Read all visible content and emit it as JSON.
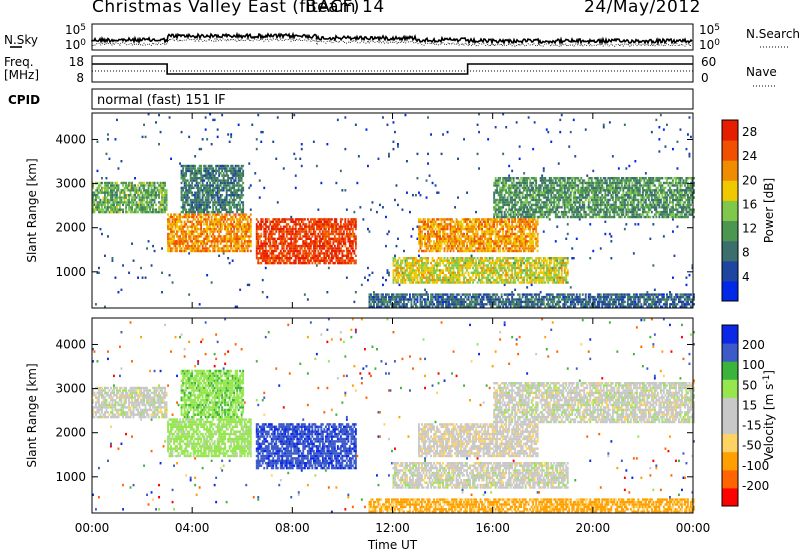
{
  "header": {
    "station": "Christmas Valley East (fitACF)",
    "beam": "Beam 14",
    "date": "24/May/2012"
  },
  "panels": {
    "nsky_label": "N.Sky",
    "nsearch_label": "N.Search",
    "freq_label_1": "Freq.",
    "freq_label_2": "[MHz]",
    "nave_label": "Nave",
    "cpid_label": "CPID",
    "cpid_value": "normal (fast) 151 IF",
    "noise_left_ticks": [
      "10^5",
      "10^0"
    ],
    "noise_right_ticks": [
      "10^5",
      "10^0"
    ],
    "freq_left_ticks": [
      "18",
      "8"
    ],
    "freq_right_ticks": [
      "60",
      "0"
    ]
  },
  "colors": {
    "power": [
      "#0028e6",
      "#1e46a0",
      "#3c6e6e",
      "#4b9650",
      "#7fc84b",
      "#f0c800",
      "#f08c00",
      "#f05000",
      "#e61e00"
    ],
    "velocity": [
      "#ff0000",
      "#ff6400",
      "#ffa000",
      "#ffd264",
      "#c8c8c8",
      "#c8c8c8",
      "#96e650",
      "#3cb43c",
      "#3c5ac8",
      "#0a28e6"
    ]
  },
  "chart_data": [
    {
      "type": "heatmap",
      "title": "Power",
      "ylabel": "Slant Range [km]",
      "xlabel": "Time UT",
      "yticks": [
        "1000",
        "2000",
        "3000",
        "4000"
      ],
      "xticks": [
        "00:00",
        "04:00",
        "08:00",
        "12:00",
        "16:00",
        "20:00",
        "00:00"
      ],
      "ylim": [
        180,
        4600
      ],
      "xlim": [
        0,
        24
      ],
      "colorbar_label": "Power [dB]",
      "colorbar_ticks": [
        "4",
        "8",
        "12",
        "16",
        "20",
        "24",
        "28"
      ],
      "colorbar_range": [
        0,
        30
      ]
    },
    {
      "type": "heatmap",
      "title": "Velocity",
      "ylabel": "Slant Range [km]",
      "xlabel": "Time UT",
      "yticks": [
        "1000",
        "2000",
        "3000",
        "4000"
      ],
      "xticks": [
        "00:00",
        "04:00",
        "08:00",
        "12:00",
        "16:00",
        "20:00",
        "00:00"
      ],
      "ylim": [
        180,
        4600
      ],
      "xlim": [
        0,
        24
      ],
      "colorbar_label": "Velocity [m s^-1]",
      "colorbar_ticks": [
        "-200",
        "-100",
        "-50",
        "-15",
        "15",
        "50",
        "100",
        "200"
      ],
      "colorbar_range": [
        -250,
        250
      ]
    }
  ]
}
